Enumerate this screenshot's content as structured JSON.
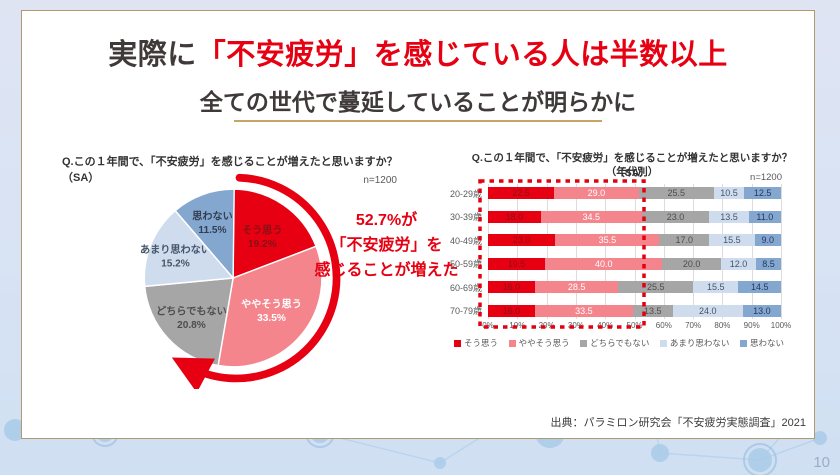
{
  "slide": {
    "title_prefix": "実際に",
    "title_highlight": "「不安疲労」を感じている人は半数以上",
    "subtitle": "全ての世代で蔓延していることが明らかに",
    "source": "出典：パラミロン研究会「不安疲労実態調査」2021",
    "page_number": "10"
  },
  "colors": {
    "accent_red": "#e60012",
    "pink": "#f4858d",
    "gray": "#a6a6a6",
    "light_blue": "#cfdcee",
    "steel_blue": "#84a7d0",
    "card_border": "#b29a6e",
    "underline": "#c9a469",
    "title_dark": "#3f3a39",
    "dotted_box": "#e3000f"
  },
  "chart_data": [
    {
      "type": "pie",
      "title": "Q.この１年間で、「不安疲労」を感じることが増えたと思いますか？（SA）",
      "sample": "n=1200",
      "labels": [
        "そう思う",
        "ややそう思う",
        "どちらでもない",
        "あまり思わない",
        "思わない"
      ],
      "values": [
        19.2,
        33.5,
        20.8,
        15.2,
        11.5
      ],
      "colors": [
        "#e60012",
        "#f4858d",
        "#a6a6a6",
        "#cfdcee",
        "#84a7d0"
      ],
      "label_colors": [
        "#8a1016",
        "#ffffff",
        "#4d4d4d",
        "#44546a",
        "#333f50"
      ],
      "label_radius": [
        0.58,
        0.56,
        0.64,
        0.7,
        0.68
      ],
      "start_angle_deg": 0,
      "direction": "clockwise",
      "annotation": [
        "52.7%が",
        "「不安疲労」を",
        "感じることが増えた"
      ]
    },
    {
      "type": "bar",
      "orientation": "horizontal-stacked",
      "title": "Q.この１年間で、「不安疲労」を感じることが増えたと思いますか？（SA）",
      "subtitle": "（年代別）",
      "sample": "n=1200",
      "categories": [
        "20-29歳",
        "30-39歳",
        "40-49歳",
        "50-59歳",
        "60-69歳",
        "70-79歳"
      ],
      "series": [
        {
          "name": "そう思う",
          "color": "#e60012",
          "label_color": "#8a1016",
          "values": [
            22.5,
            18.0,
            23.0,
            19.5,
            16.0,
            16.0
          ]
        },
        {
          "name": "ややそう思う",
          "color": "#f4858d",
          "label_color": "#ffffff",
          "values": [
            29.0,
            34.5,
            35.5,
            40.0,
            28.5,
            33.5
          ]
        },
        {
          "name": "どちらでもない",
          "color": "#a6a6a6",
          "label_color": "#4d4d4d",
          "values": [
            25.5,
            23.0,
            17.0,
            20.0,
            25.5,
            13.5
          ]
        },
        {
          "name": "あまり思わない",
          "color": "#cfdcee",
          "label_color": "#44546a",
          "values": [
            10.5,
            13.5,
            15.5,
            12.0,
            15.5,
            24.0
          ]
        },
        {
          "name": "思わない",
          "color": "#84a7d0",
          "label_color": "#223a5e",
          "values": [
            12.5,
            11.0,
            9.0,
            8.5,
            14.5,
            13.0
          ]
        }
      ],
      "x_ticks": [
        "0%",
        "10%",
        "20%",
        "30%",
        "40%",
        "50%",
        "60%",
        "70%",
        "80%",
        "90%",
        "100%"
      ],
      "xlim": [
        0,
        100
      ],
      "grid": true,
      "legend_position": "bottom"
    }
  ]
}
